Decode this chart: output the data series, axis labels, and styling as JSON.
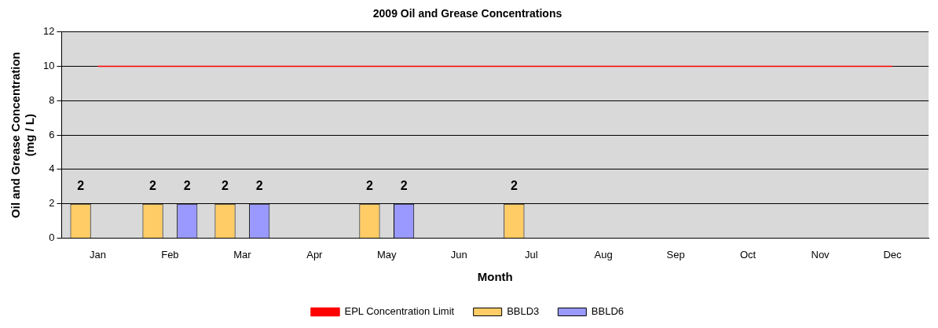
{
  "chart_data": {
    "type": "bar",
    "title": "2009 Oil and Grease Concentrations",
    "xlabel": "Month",
    "ylabel": "Oil and Grease Concentration\n(mg / L)",
    "categories": [
      "Jan",
      "Feb",
      "Mar",
      "Apr",
      "May",
      "Jun",
      "Jul",
      "Aug",
      "Sep",
      "Oct",
      "Nov",
      "Dec"
    ],
    "series": [
      {
        "name": "BBLD3",
        "color": "#ffcc66",
        "values": [
          2,
          2,
          2,
          null,
          2,
          null,
          2,
          null,
          null,
          null,
          null,
          null
        ],
        "value_labels": [
          "2",
          "2",
          "2",
          null,
          "2",
          null,
          "2",
          null,
          null,
          null,
          null,
          null
        ]
      },
      {
        "name": "BBLD6",
        "color": "#9999ff",
        "values": [
          null,
          2,
          2,
          null,
          2,
          null,
          null,
          null,
          null,
          null,
          null,
          null
        ],
        "value_labels": [
          null,
          "2",
          "2",
          null,
          "2",
          null,
          null,
          null,
          null,
          null,
          null,
          null
        ]
      },
      {
        "name": "EPL Concentration Limit",
        "type": "line",
        "color": "#ff0000",
        "values": [
          10,
          10,
          10,
          10,
          10,
          10,
          10,
          10,
          10,
          10,
          10,
          10
        ]
      }
    ],
    "ylim": [
      0,
      12
    ],
    "yticks": [
      0,
      2,
      4,
      6,
      8,
      10,
      12
    ],
    "grid": "y",
    "legend": "bottom",
    "marker": "none"
  }
}
